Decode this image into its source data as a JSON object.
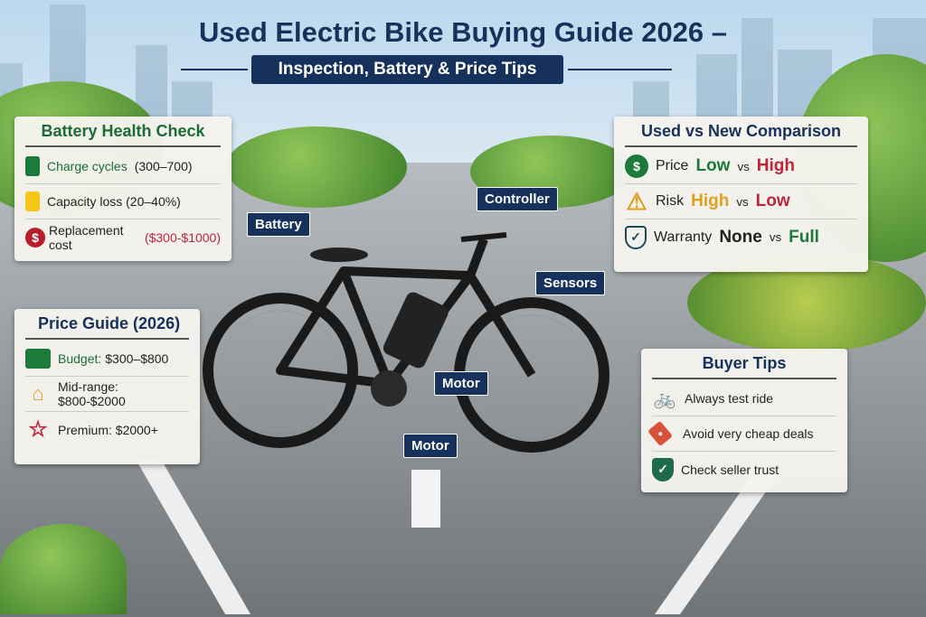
{
  "title": "Used Electric Bike Buying Guide 2026 –",
  "subtitle": "Inspection, Battery & Price Tips",
  "battery_health": {
    "heading": "Battery Health Check",
    "items": [
      {
        "icon": "battery-full-icon",
        "label": "Charge cycles",
        "value": "(300–700)"
      },
      {
        "icon": "battery-half-icon",
        "label": "Capacity loss (20–40%)"
      },
      {
        "icon": "dollar-icon",
        "label": "Replacement cost",
        "value": "($300-$1000)"
      }
    ]
  },
  "price_guide": {
    "heading": "Price Guide (2026)",
    "items": [
      {
        "icon": "wallet-icon",
        "label": "Budget:",
        "value": "$300–$800"
      },
      {
        "icon": "house-icon",
        "label": "Mid-range: $800-$2000"
      },
      {
        "icon": "star-icon",
        "label": "Premium: $2000+"
      }
    ]
  },
  "comparison": {
    "heading": "Used vs New Comparison",
    "vs": "vs",
    "rows": [
      {
        "icon": "dollar-icon",
        "label": "Price",
        "used": "Low",
        "new": "High"
      },
      {
        "icon": "warning-icon",
        "label": "Risk",
        "used": "High",
        "new": "Low"
      },
      {
        "icon": "shield-check-icon",
        "label": "Warranty",
        "used": "None",
        "new": "Full"
      }
    ]
  },
  "buyer_tips": {
    "heading": "Buyer Tips",
    "items": [
      {
        "icon": "cyclist-icon",
        "label": "Always test ride"
      },
      {
        "icon": "price-tag-icon",
        "label": "Avoid very cheap deals"
      },
      {
        "icon": "shield-check-icon",
        "label": "Check seller trust"
      }
    ]
  },
  "bike_labels": {
    "battery": "Battery",
    "controller": "Controller",
    "sensors": "Sensors",
    "motor_hub": "Motor",
    "motor_mid": "Motor"
  },
  "colors": {
    "navy": "#16325c",
    "green": "#1d6b36",
    "red": "#c0243a",
    "amber": "#e0a020"
  }
}
